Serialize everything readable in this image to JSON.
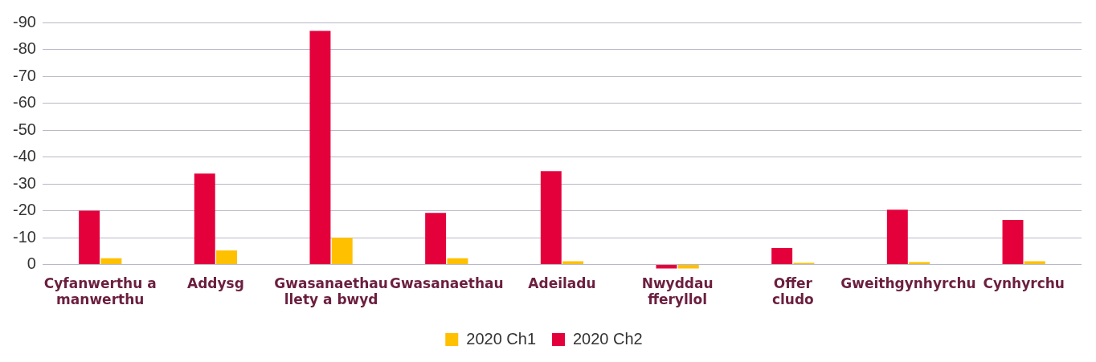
{
  "chart_data": {
    "type": "bar",
    "categories": [
      "Cyfanwerthu a\nmanwerthu",
      "Addysg",
      "Gwasanaethau\nllety a bwyd",
      "Gwasanaethau",
      "Adeiladu",
      "Nwyddau\nfferyllol",
      "Offer\ncludo",
      "Gweithgynhyrchu",
      "Cynhyrchu"
    ],
    "series": [
      {
        "name": "2020 Ch1",
        "color": "#ffc000",
        "values": [
          -2.3,
          -5.2,
          -9.9,
          -2.3,
          -1.2,
          1.5,
          -0.6,
          -0.9,
          -1.2
        ]
      },
      {
        "name": "2020 Ch2",
        "color": "#e4003b",
        "values": [
          -20,
          -33.8,
          -86.9,
          -19.2,
          -34.7,
          1.5,
          -6.1,
          -20.4,
          -16.6
        ]
      }
    ],
    "ylim": [
      2,
      -90
    ],
    "yticks": [
      0,
      -10,
      -20,
      -30,
      -40,
      -50,
      -60,
      -70,
      -80,
      -90
    ],
    "grid": "y",
    "legend": "bottom"
  }
}
